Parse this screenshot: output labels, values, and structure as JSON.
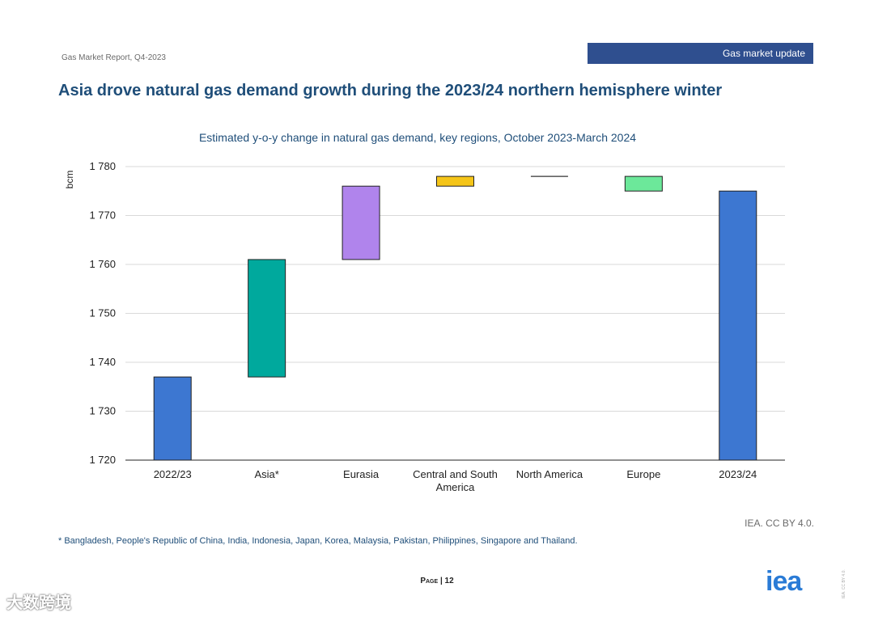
{
  "header": {
    "report_label": "Gas Market Report, Q4-2023",
    "section_tag": "Gas market update",
    "page_title": "Asia drove natural gas demand growth during the 2023/24 northern hemisphere winter"
  },
  "chart_data": {
    "type": "waterfall",
    "title": "Estimated y-o-y change in natural gas demand, key regions, October 2023-March 2024",
    "ylabel": "bcm",
    "xlabel": "",
    "ylim": [
      1720,
      1780
    ],
    "yticks": [
      1720,
      1730,
      1740,
      1750,
      1760,
      1770,
      1780
    ],
    "ytick_labels": [
      "1 720",
      "1 730",
      "1 740",
      "1 750",
      "1 760",
      "1 770",
      "1 780"
    ],
    "grid": true,
    "bars": [
      {
        "category": "2022/23",
        "label_lines": [
          "2022/23"
        ],
        "kind": "total",
        "start": 1720,
        "end": 1737,
        "color": "#3d77d1"
      },
      {
        "category": "Asia*",
        "label_lines": [
          "Asia*"
        ],
        "kind": "change",
        "start": 1737,
        "end": 1761,
        "color": "#00a99d"
      },
      {
        "category": "Eurasia",
        "label_lines": [
          "Eurasia"
        ],
        "kind": "change",
        "start": 1761,
        "end": 1776,
        "color": "#b084ec"
      },
      {
        "category": "Central and South America",
        "label_lines": [
          "Central and South",
          "America"
        ],
        "kind": "change",
        "start": 1776,
        "end": 1778,
        "color": "#f5c518"
      },
      {
        "category": "North America",
        "label_lines": [
          "North America"
        ],
        "kind": "change",
        "start": 1778,
        "end": 1778,
        "color": "#333333"
      },
      {
        "category": "Europe",
        "label_lines": [
          "Europe"
        ],
        "kind": "change",
        "start": 1778,
        "end": 1775,
        "color": "#6ce89a"
      },
      {
        "category": "2023/24",
        "label_lines": [
          "2023/24"
        ],
        "kind": "total",
        "start": 1720,
        "end": 1775,
        "color": "#3d77d1"
      }
    ]
  },
  "footer": {
    "source": "IEA. CC BY 4.0.",
    "footnote": "* Bangladesh, People's Republic of China, India, Indonesia, Japan, Korea, Malaysia, Pakistan, Philippines, Singapore and Thailand.",
    "page_label": "Page",
    "page_number": "| 12",
    "logo_text": "iea",
    "license_vertical": "IEA. CC BY 4.0.",
    "watermark": "大数跨境"
  }
}
